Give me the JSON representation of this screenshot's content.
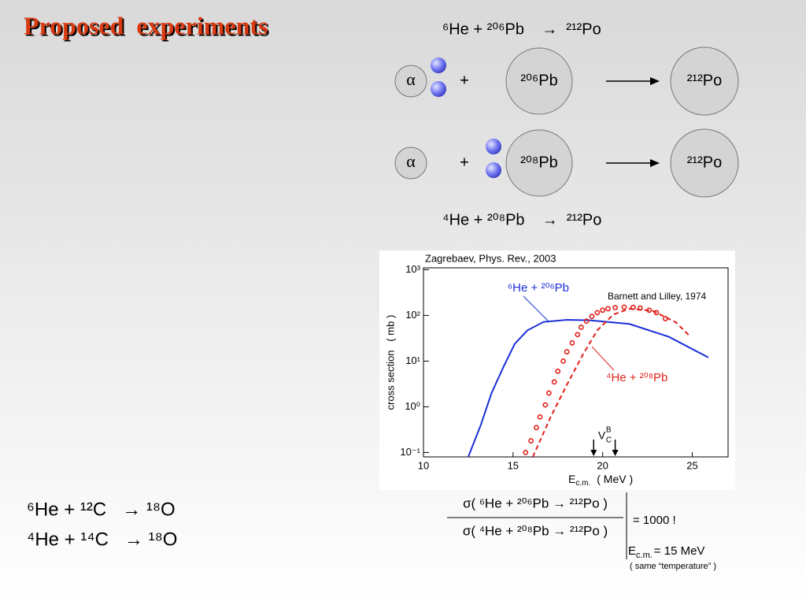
{
  "title": "Proposed  experiments",
  "diagram": {
    "top_equation": "⁶He + ²⁰⁶Pb    →  ²¹²Po",
    "rows": [
      {
        "projectile": "α",
        "plus": "+",
        "target": "²⁰⁶Pb",
        "product": "²¹²Po"
      },
      {
        "projectile": "α",
        "plus": "+",
        "target": "²⁰⁸Pb",
        "product": "²¹²Po"
      }
    ],
    "bottom_equation": "⁴He + ²⁰⁸Pb    →  ²¹²Po"
  },
  "left_reactions": [
    "⁶He + ¹²C   → ¹⁸O",
    "⁴He + ¹⁴C   → ¹⁸O"
  ],
  "chart_data": {
    "type": "line",
    "annotation": "Zagrebaev, Phys. Rev., 2003",
    "x_label": {
      "symbol": "E",
      "subscript": "c.m.",
      "unit": "( MeV )"
    },
    "y_label": "cross section   ( mb )",
    "log_y": true,
    "xlim": [
      10,
      27
    ],
    "ylim": [
      0.08,
      1100
    ],
    "xticks": [
      10,
      15,
      20,
      25
    ],
    "yticks": [
      {
        "value": 0.1,
        "label": "10⁻¹"
      },
      {
        "value": 1,
        "label": "10⁰"
      },
      {
        "value": 10,
        "label": "10¹"
      },
      {
        "value": 100,
        "label": "10²"
      },
      {
        "value": 1000,
        "label": "10³"
      }
    ],
    "series": [
      {
        "name": "⁶He + ²⁰⁶Pb",
        "color": "#1a2fd6",
        "style": "solid",
        "x": [
          12.5,
          13.2,
          13.8,
          14.5,
          15.1,
          15.8,
          16.7,
          18,
          19.3,
          21.5,
          23.7,
          25.9
        ],
        "values": [
          0.08,
          0.4,
          2,
          8,
          24,
          47,
          72,
          80,
          78,
          65,
          34,
          12
        ]
      },
      {
        "name": "⁴He + ²⁰⁸Pb",
        "color": "#e0201a",
        "style": "dashed",
        "x": [
          16.1,
          17.1,
          18,
          18.9,
          19.7,
          20.6,
          21.5,
          22.8,
          24.1,
          24.9
        ],
        "values": [
          0.08,
          0.6,
          3,
          14,
          47,
          105,
          140,
          126,
          70,
          34
        ]
      },
      {
        "name": "Barnett and Lilley, 1974",
        "color": "#e0201a",
        "style": "circles",
        "x": [
          15.7,
          16.0,
          16.3,
          16.5,
          16.8,
          17.0,
          17.3,
          17.5,
          17.8,
          18.0,
          18.3,
          18.6,
          18.8,
          19.1,
          19.4,
          19.7,
          20.0,
          20.3,
          20.7,
          21.2,
          21.7,
          22.1,
          22.6,
          23.0,
          23.5
        ],
        "values": [
          0.1,
          0.18,
          0.35,
          0.6,
          1.1,
          2,
          3.5,
          6,
          10,
          16,
          25,
          38,
          55,
          75,
          95,
          115,
          130,
          140,
          148,
          152,
          150,
          145,
          130,
          115,
          85
        ]
      }
    ],
    "barrier": {
      "symbol": "V",
      "subscript": "C",
      "superscript": "B",
      "x": [
        19.5,
        20.7
      ]
    }
  },
  "ratio": {
    "numerator": "σ( ⁶He + ²⁰⁶Pb → ²¹²Po )",
    "denominator": "σ( ⁴He + ²⁰⁸Pb → ²¹²Po )",
    "result": "= 1000 !",
    "condition_symbol": "E",
    "condition_subscript": "c.m.",
    "condition_value": "= 15 MeV",
    "note": "( same “temperature” )"
  }
}
